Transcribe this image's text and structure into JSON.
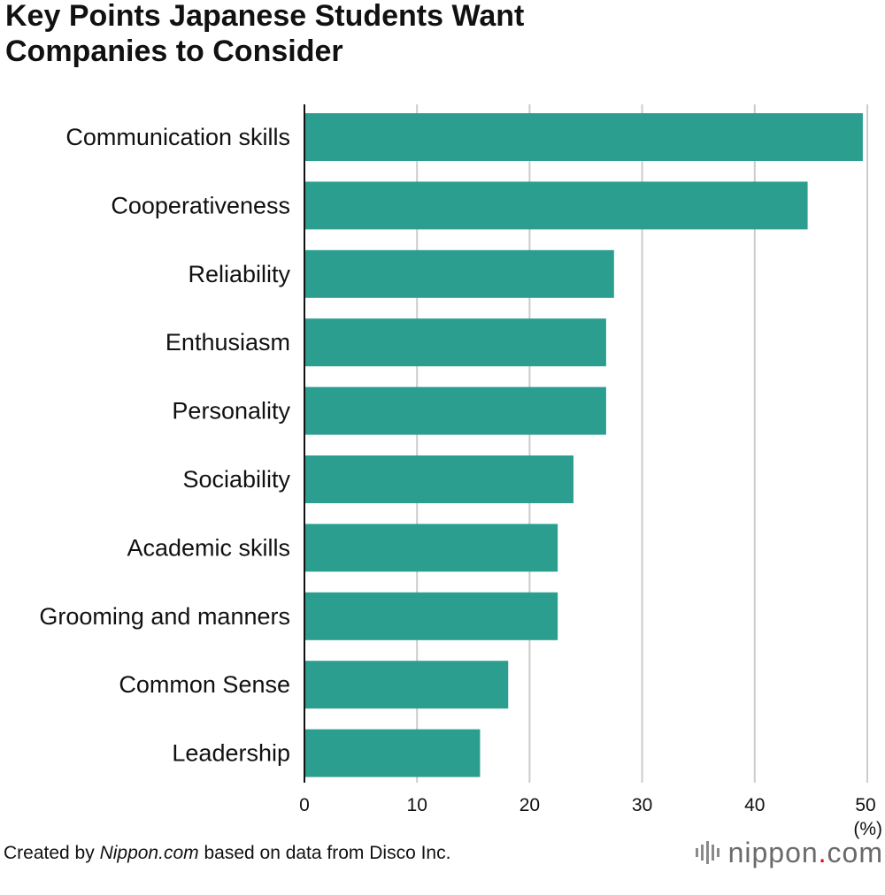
{
  "title_lines": [
    "Key Points Japanese Students Want",
    "Companies to Consider"
  ],
  "footer": {
    "prefix": "Created by ",
    "source_name": "Nippon.com",
    "suffix": " based on data from Disco Inc."
  },
  "logo": {
    "name": "nippon",
    "dot": ".",
    "tld": "com"
  },
  "colors": {
    "bar": "#2b9e8f",
    "grid": "#cccccc",
    "axis": "#111111",
    "logo_dot": "#e60012"
  },
  "chart_data": {
    "type": "bar",
    "orientation": "horizontal",
    "title": "Key Points Japanese Students Want Companies to Consider",
    "categories": [
      "Communication skills",
      "Cooperativeness",
      "Reliability",
      "Enthusiasm",
      "Personality",
      "Sociability",
      "Academic skills",
      "Grooming and manners",
      "Common Sense",
      "Leadership"
    ],
    "values": [
      49.6,
      44.7,
      27.5,
      26.8,
      26.8,
      23.9,
      22.5,
      22.5,
      18.1,
      15.6
    ],
    "xlim": [
      0,
      50
    ],
    "xticks": [
      0,
      10,
      20,
      30,
      40,
      50
    ],
    "xlabel": "(%)",
    "ylabel": "",
    "grid": true
  }
}
